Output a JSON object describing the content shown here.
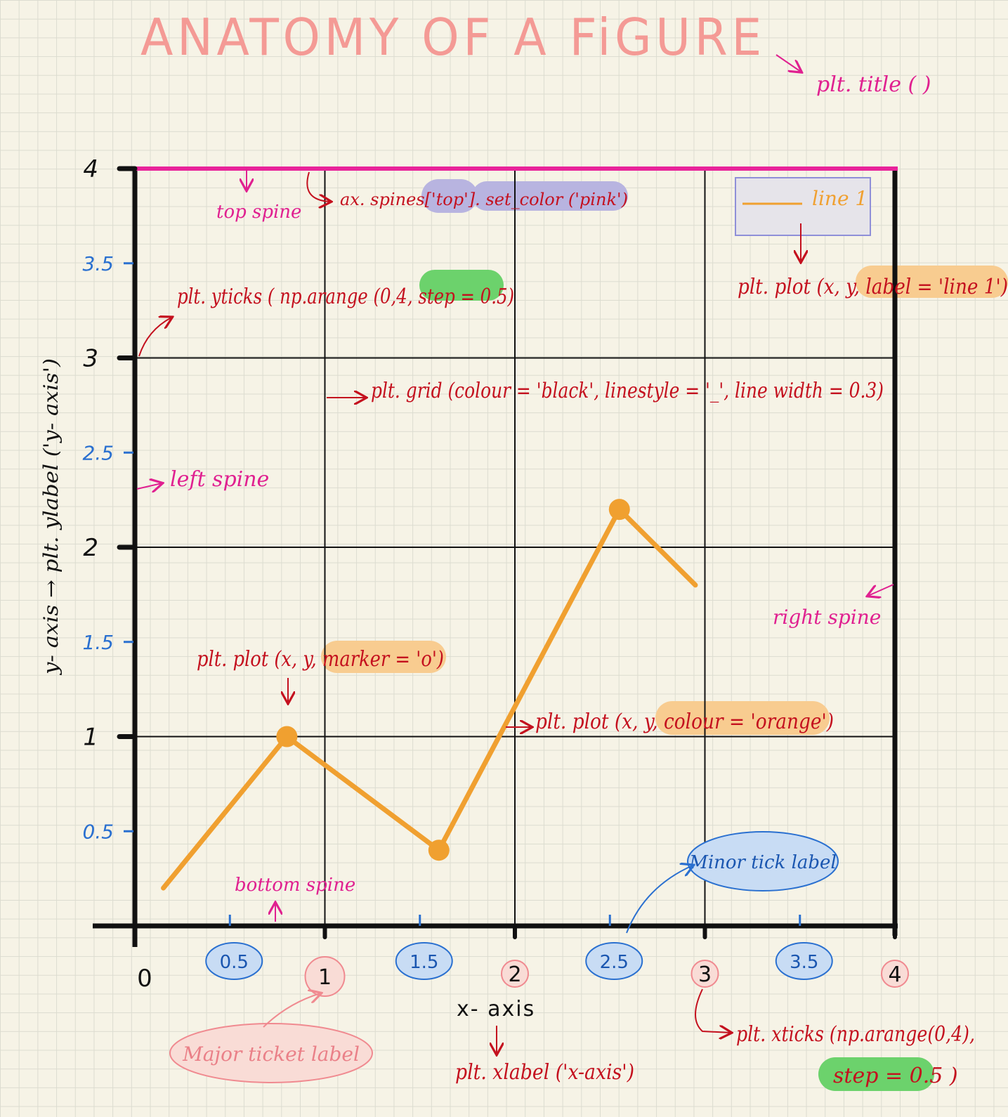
{
  "title": "ANATOMY OF A FiGURE",
  "chart_data": {
    "type": "line",
    "x": [
      0.15,
      0.8,
      1.6,
      2.55,
      2.95
    ],
    "series": [
      {
        "name": "line 1",
        "values": [
          0.2,
          1.0,
          0.4,
          2.2,
          1.8
        ],
        "color": "#f0a030"
      }
    ],
    "markers": [
      {
        "x": 0.8,
        "y": 1.0
      },
      {
        "x": 1.6,
        "y": 0.4
      },
      {
        "x": 2.55,
        "y": 2.2
      }
    ],
    "xlim": [
      0,
      4
    ],
    "ylim": [
      0,
      4
    ],
    "grid": true,
    "legend_position": "top-right",
    "xlabel": "x- axis",
    "ylabel": "y- axis → plt. ylabel ('y- axis')",
    "x_ticks_major": [
      "0",
      "1",
      "2",
      "3",
      "4"
    ],
    "x_ticks_minor": [
      "0.5",
      "1.5",
      "2.5",
      "3.5"
    ],
    "y_ticks_major": [
      "1",
      "2",
      "3",
      "4"
    ],
    "y_ticks_minor": [
      "0.5",
      "1.5",
      "2.5",
      "3.5"
    ]
  },
  "annotations": {
    "title_fn": "plt. title ( )",
    "top_spine": "top spine",
    "spines_code": "ax. spines['top']. set_color ('pink')",
    "yticks_code": "plt. yticks ( np.arange (0,4, step = 0.5)",
    "label_code": "plt. plot (x, y, label = 'line 1')",
    "grid_code": "plt. grid (colour = 'black', linestyle = '_', line width = 0.3)",
    "left_spine": "left spine",
    "right_spine": "right spine",
    "marker_code": "plt. plot (x, y, marker = 'o')",
    "colour_code": "plt. plot (x, y, colour = 'orange')",
    "bottom_spine": "bottom spine",
    "minor_tick_label": "Minor tick label",
    "major_tick_label": "Major ticket label",
    "xlabel_code": "plt. xlabel ('x-axis')",
    "xticks_code": "plt. xticks (np.arange(0,4),",
    "xticks_step": "step = 0.5 )"
  },
  "colors": {
    "title": "#f49a95",
    "spine_top": "#e8239a",
    "annotation_red": "#c4101e",
    "annotation_pink": "#e02090",
    "minor_blue": "#2a70d0",
    "line": "#f0a030",
    "highlight_orange": "#f8cc90",
    "highlight_green": "#6cd26c",
    "highlight_purple": "#b8b4e0"
  }
}
